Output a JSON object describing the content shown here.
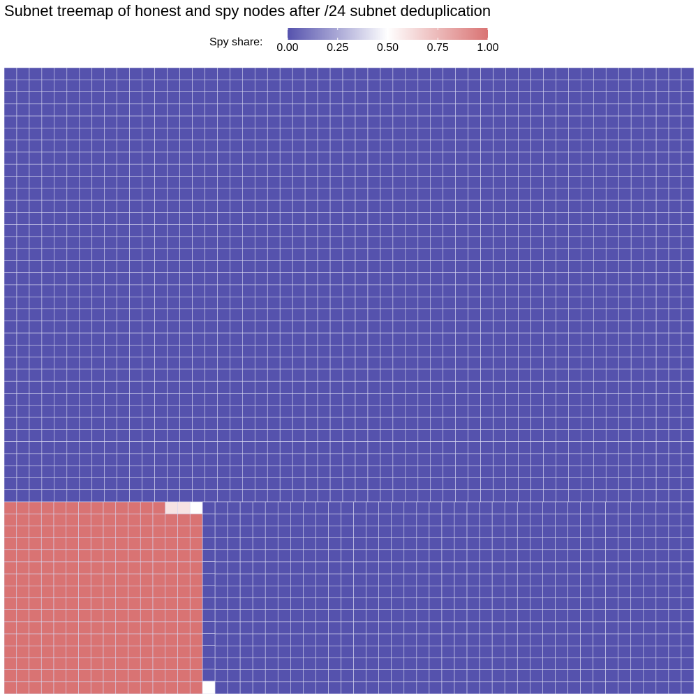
{
  "chart_data": {
    "type": "treemap",
    "title": "Subnet treemap of honest and spy nodes after /24 subnet deduplication",
    "legend": {
      "title": "Spy share:",
      "placement": "top",
      "ticks": [
        "0.00",
        "0.25",
        "0.50",
        "0.75",
        "1.00"
      ],
      "tick_values": [
        0,
        0.25,
        0.5,
        0.75,
        1
      ],
      "range": [
        0,
        1
      ]
    },
    "color_scale": {
      "low": "#5552ad",
      "mid": "#ffffff",
      "high": "#d97373",
      "midpoint": 0.5
    },
    "grid_line_color": "#d8d8f0",
    "groups": [
      {
        "spy_share": 0,
        "approx_subnet_count": 2780
      },
      {
        "spy_share": 1,
        "approx_subnet_count": 264
      },
      {
        "spy_share": 0.6,
        "approx_subnet_count": 2
      },
      {
        "spy_share": 0.5,
        "approx_subnet_count": 2
      }
    ]
  }
}
